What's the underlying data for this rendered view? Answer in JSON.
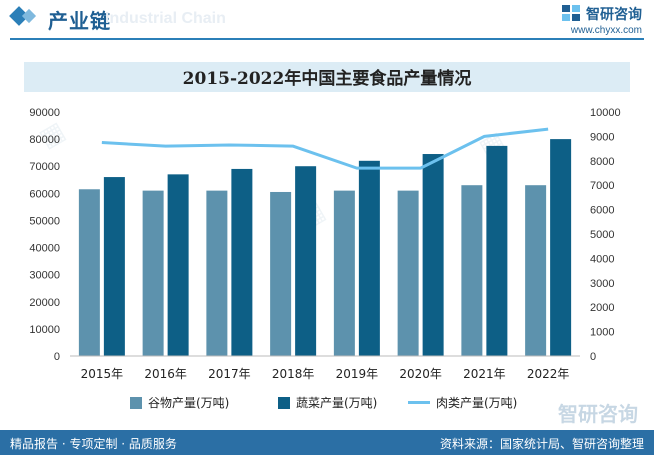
{
  "header": {
    "section_title": "产业链",
    "ghost_text": "Industrial Chain",
    "brand_name": "智研咨询",
    "brand_url": "www.chyxx.com"
  },
  "colors": {
    "grain": "#5d92ad",
    "vegetable": "#0d5f86",
    "meat": "#6cc1ee",
    "accent": "#2b6fa5"
  },
  "chart_data": {
    "type": "bar",
    "title": "2015-2022年中国主要食品产量情况",
    "categories": [
      "2015年",
      "2016年",
      "2017年",
      "2018年",
      "2019年",
      "2020年",
      "2021年",
      "2022年"
    ],
    "series": [
      {
        "name": "谷物产量(万吨)",
        "type": "bar",
        "axis": "left",
        "color": "#5d92ad",
        "values": [
          61500,
          61000,
          61000,
          60500,
          61000,
          61000,
          63000,
          63000
        ]
      },
      {
        "name": "蔬菜产量(万吨)",
        "type": "bar",
        "axis": "left",
        "color": "#0d5f86",
        "values": [
          66000,
          67000,
          69000,
          70000,
          72000,
          74500,
          77500,
          80000
        ]
      },
      {
        "name": "肉类产量(万吨)",
        "type": "line",
        "axis": "right",
        "color": "#6cc1ee",
        "values": [
          8750,
          8600,
          8650,
          8600,
          7700,
          7700,
          9000,
          9300
        ]
      }
    ],
    "ylim_left": [
      0,
      90000
    ],
    "yticks_left": [
      "0",
      "10000",
      "20000",
      "30000",
      "40000",
      "50000",
      "60000",
      "70000",
      "80000",
      "90000"
    ],
    "ylim_right": [
      0,
      10000
    ],
    "yticks_right": [
      "0",
      "1000",
      "2000",
      "3000",
      "4000",
      "5000",
      "6000",
      "7000",
      "8000",
      "9000",
      "10000"
    ],
    "grid": false,
    "legend_position": "bottom"
  },
  "footer": {
    "slogan": "精品报告 · 专项定制 · 品质服务",
    "source": "资料来源：国家统计局、智研咨询整理"
  }
}
